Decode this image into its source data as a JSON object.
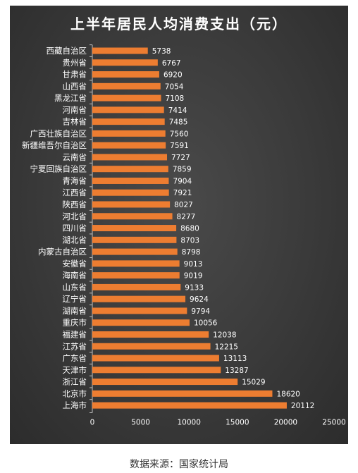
{
  "source_note": "数据来源：国家统计局",
  "colors": {
    "bar": "#ed7d31",
    "panel": "#3a3a3a",
    "text": "#ffffff"
  },
  "chart_data": {
    "type": "bar",
    "orientation": "horizontal",
    "title": "上半年居民人均消费支出（元）",
    "xlabel": "",
    "ylabel": "",
    "xlim": [
      0,
      25000
    ],
    "ticks": [
      0,
      5000,
      10000,
      15000,
      20000,
      25000
    ],
    "grid": false,
    "data_labels": true,
    "categories": [
      "西藏自治区",
      "贵州省",
      "甘肃省",
      "山西省",
      "黑龙江省",
      "河南省",
      "吉林省",
      "广西壮族自治区",
      "新疆维吾尔自治区",
      "云南省",
      "宁夏回族自治区",
      "青海省",
      "江西省",
      "陕西省",
      "河北省",
      "四川省",
      "湖北省",
      "内蒙古自治区",
      "安徽省",
      "海南省",
      "山东省",
      "辽宁省",
      "湖南省",
      "重庆市",
      "福建省",
      "江苏省",
      "广东省",
      "天津市",
      "浙江省",
      "北京市",
      "上海市"
    ],
    "values": [
      5738,
      6767,
      6920,
      7054,
      7108,
      7414,
      7485,
      7560,
      7591,
      7727,
      7859,
      7904,
      7921,
      8027,
      8277,
      8680,
      8703,
      8798,
      9013,
      9019,
      9133,
      9624,
      9794,
      10056,
      12038,
      12215,
      13113,
      13287,
      15029,
      18620,
      20112
    ]
  }
}
